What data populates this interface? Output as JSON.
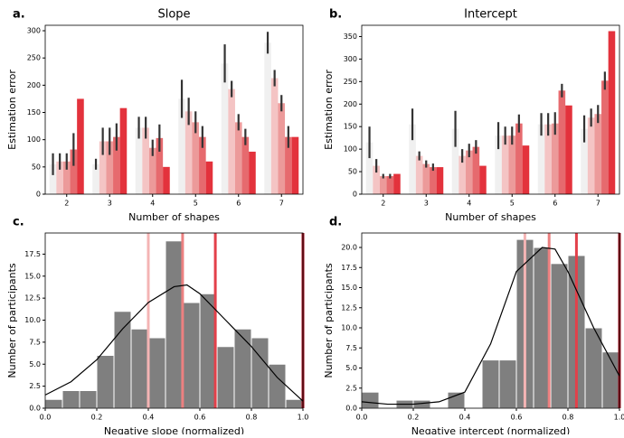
{
  "chart_data": [
    {
      "type": "grouped-bar",
      "panel_label": "a.",
      "title": "Slope",
      "x_label": "Number of shapes",
      "y_label": "Estimation error",
      "categories": [
        "2",
        "3",
        "4",
        "5",
        "6",
        "7"
      ],
      "ylim": [
        0,
        310
      ],
      "yticks": [
        0,
        50,
        100,
        150,
        200,
        250,
        300
      ],
      "series": [
        {
          "color": "#f0f0f0",
          "values": [
            55,
            55,
            122,
            175,
            240,
            278
          ],
          "errors": [
            20,
            10,
            20,
            35,
            35,
            20
          ]
        },
        {
          "color": "#f4c4c4",
          "values": [
            60,
            97,
            122,
            152,
            193,
            213
          ],
          "errors": [
            15,
            25,
            20,
            25,
            15,
            15
          ]
        },
        {
          "color": "#ec9a9a",
          "values": [
            60,
            97,
            85,
            132,
            132,
            167
          ],
          "errors": [
            15,
            25,
            15,
            20,
            15,
            15
          ]
        },
        {
          "color": "#e66a6e",
          "values": [
            82,
            105,
            103,
            105,
            105,
            105
          ],
          "errors": [
            30,
            25,
            25,
            20,
            15,
            20
          ]
        },
        {
          "color": "#e3323c",
          "values": [
            175,
            158,
            50,
            60,
            78,
            105
          ]
        }
      ]
    },
    {
      "type": "grouped-bar",
      "panel_label": "b.",
      "title": "Intercept",
      "x_label": "Number of shapes",
      "y_label": "Estimation error",
      "categories": [
        "2",
        "3",
        "4",
        "5",
        "6",
        "7"
      ],
      "ylim": [
        0,
        375
      ],
      "yticks": [
        0,
        50,
        100,
        150,
        200,
        250,
        300,
        350
      ],
      "series": [
        {
          "color": "#f0f0f0",
          "values": [
            115,
            155,
            145,
            130,
            155,
            145
          ],
          "errors": [
            35,
            35,
            40,
            30,
            25,
            30
          ]
        },
        {
          "color": "#f4c4c4",
          "values": [
            63,
            85,
            85,
            130,
            155,
            170
          ],
          "errors": [
            15,
            10,
            15,
            20,
            25,
            20
          ]
        },
        {
          "color": "#ec9a9a",
          "values": [
            40,
            67,
            97,
            130,
            157,
            178
          ],
          "errors": [
            5,
            8,
            15,
            20,
            25,
            20
          ]
        },
        {
          "color": "#e66a6e",
          "values": [
            40,
            60,
            105,
            157,
            230,
            252
          ],
          "errors": [
            5,
            8,
            15,
            20,
            15,
            20
          ]
        },
        {
          "color": "#e3323c",
          "values": [
            45,
            60,
            63,
            108,
            197,
            362
          ]
        }
      ]
    },
    {
      "type": "histogram",
      "panel_label": "c.",
      "x_label": "Negative slope (normalized)",
      "y_label": "Number of participants",
      "color": "#7f7f7f",
      "bins": [
        0,
        0.0667,
        0.1333,
        0.2,
        0.2667,
        0.3333,
        0.4,
        0.4667,
        0.5333,
        0.6,
        0.6667,
        0.7333,
        0.8,
        0.8667,
        0.9333,
        1
      ],
      "values": [
        1,
        2,
        2,
        6,
        11,
        9,
        8,
        19,
        12,
        13,
        7,
        9,
        8,
        5,
        1
      ],
      "xlim": [
        0,
        1
      ],
      "ylim": [
        0,
        19.9
      ],
      "xticks": [
        {
          "value": 0,
          "label": "0.0"
        },
        {
          "value": 0.2,
          "label": "0.2"
        },
        {
          "value": 0.4,
          "label": "0.4"
        },
        {
          "value": 0.6,
          "label": "0.6"
        },
        {
          "value": 0.8,
          "label": "0.8"
        },
        {
          "value": 1,
          "label": "1.0"
        }
      ],
      "yticks": [
        {
          "value": 0,
          "label": "0.0"
        },
        {
          "value": 2.5,
          "label": "2.5"
        },
        {
          "value": 5,
          "label": "5.0"
        },
        {
          "value": 7.5,
          "label": "7.5"
        },
        {
          "value": 10,
          "label": "10.0"
        },
        {
          "value": 12.5,
          "label": "12.5"
        },
        {
          "value": 15,
          "label": "15.0"
        },
        {
          "value": 17.5,
          "label": "17.5"
        }
      ],
      "curve": {
        "color": "#000000",
        "x": [
          0,
          0.1,
          0.2,
          0.3,
          0.4,
          0.5,
          0.55,
          0.6,
          0.7,
          0.8,
          0.9,
          1
        ],
        "values": [
          1.5,
          3,
          5.5,
          9,
          12,
          13.8,
          14,
          13,
          10,
          7,
          3.5,
          0.8
        ]
      },
      "vlines": [
        {
          "x": 0.4,
          "color": "#f4b4b4"
        },
        {
          "x": 0.533,
          "color": "#ec8080"
        },
        {
          "x": 0.66,
          "color": "#e3404a"
        },
        {
          "x": 1,
          "color": "#a01020"
        }
      ]
    },
    {
      "type": "histogram",
      "panel_label": "d.",
      "x_label": "Negative intercept (normalized)",
      "y_label": "Number of participants",
      "color": "#7f7f7f",
      "bins": [
        0,
        0.0667,
        0.1333,
        0.2,
        0.2667,
        0.3333,
        0.4,
        0.4667,
        0.5333,
        0.6,
        0.6667,
        0.7333,
        0.8,
        0.8667,
        0.9333,
        1
      ],
      "values": [
        2,
        0,
        1,
        1,
        0,
        2,
        0,
        6,
        6,
        21,
        20,
        18,
        19,
        10,
        7
      ],
      "xlim": [
        0,
        1
      ],
      "ylim": [
        0,
        21.8
      ],
      "xticks": [
        {
          "value": 0,
          "label": "0.0"
        },
        {
          "value": 0.2,
          "label": "0.2"
        },
        {
          "value": 0.4,
          "label": "0.4"
        },
        {
          "value": 0.6,
          "label": "0.6"
        },
        {
          "value": 0.8,
          "label": "0.8"
        },
        {
          "value": 1,
          "label": "1.0"
        }
      ],
      "yticks": [
        {
          "value": 0,
          "label": "0.0"
        },
        {
          "value": 2.5,
          "label": "2.5"
        },
        {
          "value": 5,
          "label": "5.0"
        },
        {
          "value": 7.5,
          "label": "7.5"
        },
        {
          "value": 10,
          "label": "10.0"
        },
        {
          "value": 12.5,
          "label": "12.5"
        },
        {
          "value": 15,
          "label": "15.0"
        },
        {
          "value": 17.5,
          "label": "17.5"
        },
        {
          "value": 20,
          "label": "20.0"
        }
      ],
      "curve": {
        "color": "#000000",
        "x": [
          0,
          0.1,
          0.2,
          0.3,
          0.4,
          0.5,
          0.6,
          0.7,
          0.75,
          0.8,
          0.9,
          1
        ],
        "values": [
          0.8,
          0.5,
          0.5,
          0.8,
          2,
          8,
          17,
          20,
          19.8,
          17,
          10,
          4
        ]
      },
      "vlines": [
        {
          "x": 0.633,
          "color": "#f4b4b4"
        },
        {
          "x": 0.727,
          "color": "#ec8080"
        },
        {
          "x": 0.833,
          "color": "#e3404a"
        },
        {
          "x": 1,
          "color": "#a01020"
        }
      ]
    }
  ]
}
